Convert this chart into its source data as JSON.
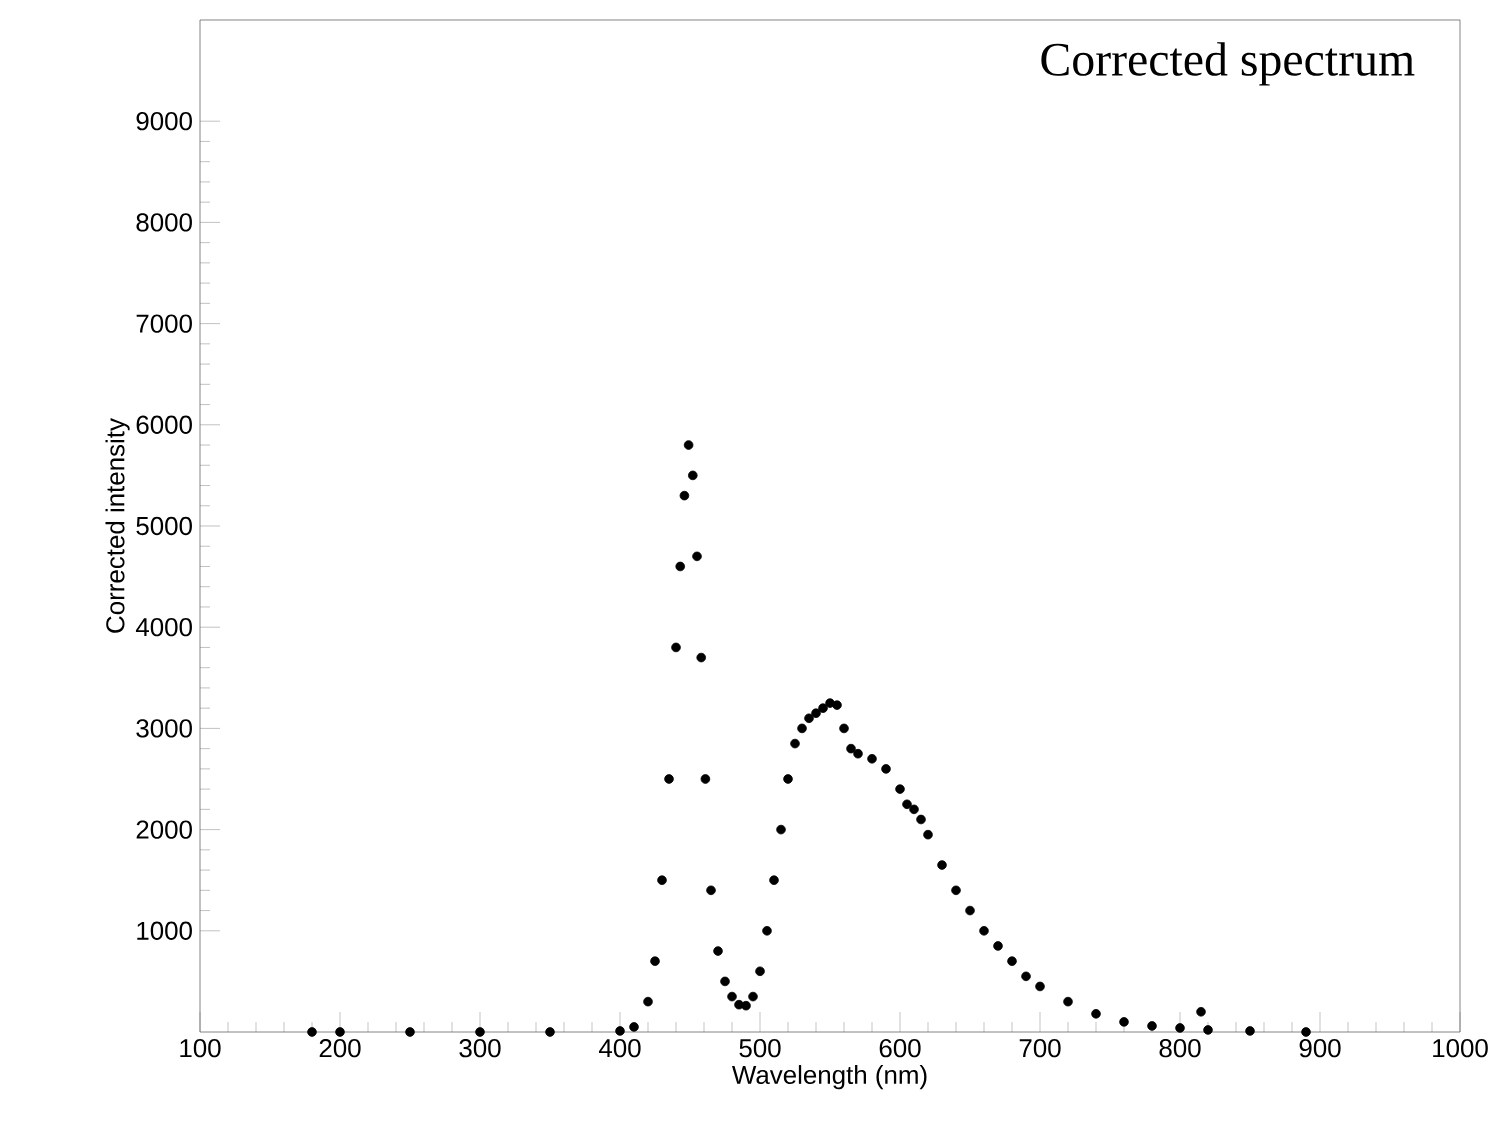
{
  "chart_data": {
    "type": "scatter",
    "title": "Corrected spectrum",
    "xlabel": "Wavelength (nm)",
    "ylabel": "Corrected intensity",
    "xlim": [
      100,
      1000
    ],
    "xticks": [
      100,
      200,
      300,
      400,
      500,
      600,
      700,
      800,
      900,
      1000
    ],
    "ylim": [
      0,
      10000
    ],
    "yticks": [
      1000,
      2000,
      3000,
      4000,
      5000,
      6000,
      7000,
      8000,
      9000
    ],
    "marker": "circle",
    "grid": false,
    "series": [
      {
        "color": "#000000",
        "x": [
          180,
          200,
          250,
          300,
          350,
          400,
          410,
          420,
          425,
          430,
          435,
          440,
          443,
          446,
          449,
          452,
          455,
          458,
          461,
          465,
          470,
          475,
          480,
          485,
          490,
          495,
          500,
          505,
          510,
          515,
          520,
          525,
          530,
          535,
          540,
          545,
          550,
          555,
          560,
          565,
          570,
          580,
          590,
          600,
          605,
          610,
          615,
          620,
          630,
          640,
          650,
          660,
          670,
          680,
          690,
          700,
          720,
          740,
          760,
          780,
          800,
          815,
          820,
          850,
          890
        ],
        "values": [
          0,
          0,
          0,
          0,
          0,
          10,
          50,
          300,
          700,
          1500,
          2500,
          3800,
          4600,
          5300,
          5800,
          5500,
          4700,
          3700,
          2500,
          1400,
          800,
          500,
          350,
          270,
          260,
          350,
          600,
          1000,
          1500,
          2000,
          2500,
          2850,
          3000,
          3100,
          3150,
          3200,
          3250,
          3230,
          3000,
          2800,
          2750,
          2700,
          2600,
          2400,
          2250,
          2200,
          2100,
          1950,
          1650,
          1400,
          1200,
          1000,
          850,
          700,
          550,
          450,
          300,
          180,
          100,
          60,
          40,
          200,
          20,
          10,
          0
        ]
      }
    ]
  }
}
